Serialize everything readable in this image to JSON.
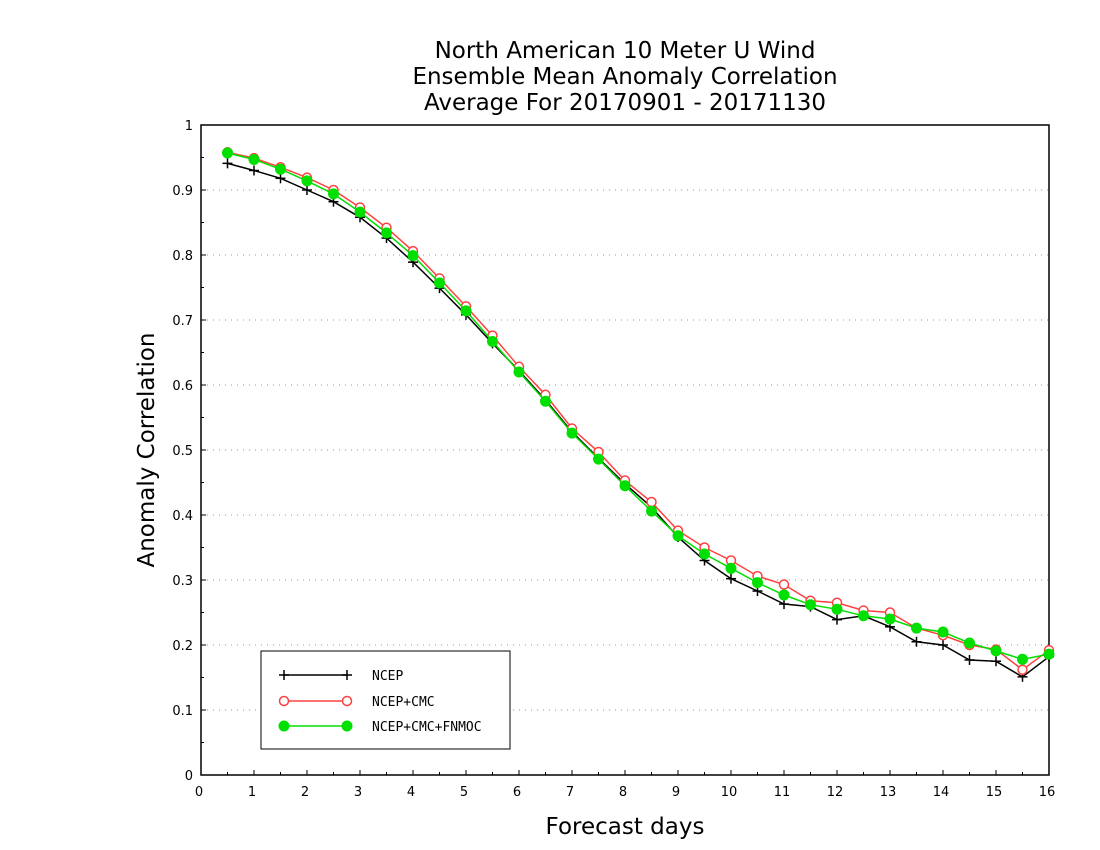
{
  "chart_data": {
    "type": "line",
    "title": [
      "North American 10 Meter U Wind",
      "Ensemble Mean Anomaly Correlation",
      "Average For 20170901 - 20171130"
    ],
    "xlabel": "Forecast days",
    "ylabel": "Anomaly Correlation",
    "xlim": [
      0,
      16
    ],
    "ylim": [
      0,
      1
    ],
    "xticks": [
      "0",
      "1",
      "2",
      "3",
      "4",
      "5",
      "6",
      "7",
      "8",
      "9",
      "10",
      "11",
      "12",
      "13",
      "14",
      "15",
      "16"
    ],
    "yticks": [
      "0",
      "0.1",
      "0.2",
      "0.3",
      "0.4",
      "0.5",
      "0.6",
      "0.7",
      "0.8",
      "0.9",
      "1"
    ],
    "grid": "dotted horizontal",
    "legend_position": "bottom-left",
    "x": [
      0.5,
      1,
      1.5,
      2,
      2.5,
      3,
      3.5,
      4,
      4.5,
      5,
      5.5,
      6,
      6.5,
      7,
      7.5,
      8,
      8.5,
      9,
      9.5,
      10,
      10.5,
      11,
      11.5,
      12,
      12.5,
      13,
      13.5,
      14,
      14.5,
      15,
      15.5,
      16
    ],
    "series": [
      {
        "name": "NCEP",
        "color": "#000000",
        "marker": "plus",
        "values": [
          0.941,
          0.93,
          0.918,
          0.9,
          0.882,
          0.858,
          0.826,
          0.789,
          0.749,
          0.708,
          0.664,
          0.622,
          0.577,
          0.528,
          0.487,
          0.448,
          0.412,
          0.366,
          0.33,
          0.302,
          0.283,
          0.263,
          0.259,
          0.239,
          0.245,
          0.228,
          0.205,
          0.2,
          0.177,
          0.175,
          0.151,
          0.182
        ]
      },
      {
        "name": "NCEP+CMC",
        "color": "#ff4040",
        "marker": "open-circle",
        "values": [
          0.958,
          0.949,
          0.935,
          0.919,
          0.9,
          0.873,
          0.842,
          0.806,
          0.764,
          0.721,
          0.676,
          0.628,
          0.585,
          0.533,
          0.497,
          0.453,
          0.42,
          0.376,
          0.35,
          0.33,
          0.306,
          0.293,
          0.268,
          0.265,
          0.253,
          0.25,
          0.226,
          0.215,
          0.2,
          0.193,
          0.162,
          0.192
        ]
      },
      {
        "name": "NCEP+CMC+FNMOC",
        "color": "#00e000",
        "marker": "filled-circle",
        "values": [
          0.957,
          0.947,
          0.932,
          0.914,
          0.894,
          0.866,
          0.834,
          0.799,
          0.757,
          0.714,
          0.667,
          0.62,
          0.575,
          0.526,
          0.486,
          0.445,
          0.406,
          0.368,
          0.34,
          0.318,
          0.296,
          0.277,
          0.262,
          0.255,
          0.245,
          0.24,
          0.226,
          0.22,
          0.203,
          0.191,
          0.178,
          0.186
        ]
      }
    ]
  }
}
